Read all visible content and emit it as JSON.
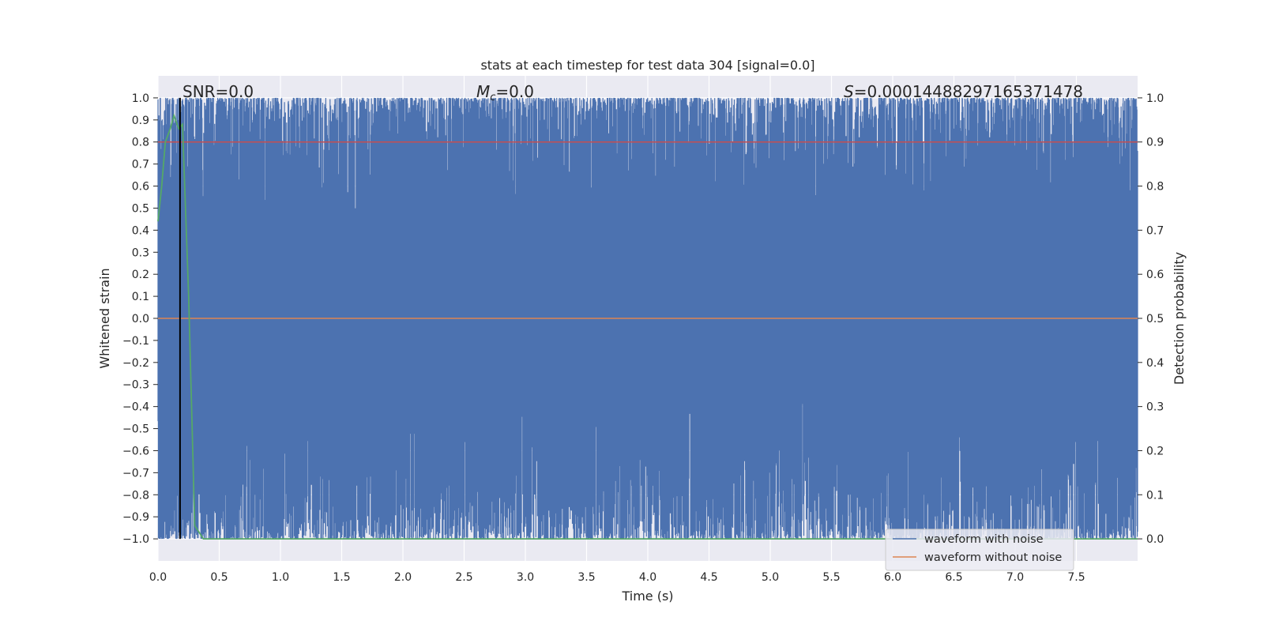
{
  "chart_data": {
    "type": "line",
    "title": "stats at each timestep for test data 304 [signal=0.0]",
    "xlabel": "Time (s)",
    "ylabel": "Whitened strain",
    "ylabel_right": "Detection probability",
    "xlim": [
      0.0,
      8.0
    ],
    "ylim": [
      -1.1,
      1.1
    ],
    "ylim_right": [
      -0.05,
      1.05
    ],
    "xticks": [
      "0.0",
      "0.5",
      "1.0",
      "1.5",
      "2.0",
      "2.5",
      "3.0",
      "3.5",
      "4.0",
      "4.5",
      "5.0",
      "5.5",
      "6.0",
      "6.5",
      "7.0",
      "7.5"
    ],
    "yticks": [
      "1.0",
      "0.9",
      "0.8",
      "0.7",
      "0.6",
      "0.5",
      "0.4",
      "0.3",
      "0.2",
      "0.1",
      "0.0",
      "−0.1",
      "−0.2",
      "−0.3",
      "−0.4",
      "−0.5",
      "−0.6",
      "−0.7",
      "−0.8",
      "−0.9",
      "−1.0"
    ],
    "yticks_right": [
      "1.0",
      "0.9",
      "0.8",
      "0.7",
      "0.6",
      "0.5",
      "0.4",
      "0.3",
      "0.2",
      "0.1",
      "0.0"
    ],
    "grid": true,
    "annotations": {
      "snr": "SNR=0.0",
      "mc_symbol": "M",
      "mc_sub": "c",
      "mc_value": "=0.0",
      "s_symbol": "S",
      "s_value": "=0.00014488297165371478"
    },
    "legend": {
      "placement": "lower-right",
      "entries": [
        "waveform with noise",
        "waveform without noise"
      ]
    },
    "series": [
      {
        "name": "waveform with noise",
        "color": "#4c72b0",
        "description_range": [
          -1.0,
          1.0
        ]
      },
      {
        "name": "waveform without noise",
        "color": "#dd8452",
        "x": [
          0.0,
          8.0
        ],
        "y": [
          0.0,
          0.0
        ]
      },
      {
        "color": "#c44e52",
        "axis": "right",
        "x": [
          0.0,
          8.0
        ],
        "y": [
          0.9,
          0.9
        ]
      },
      {
        "color": "#55a868",
        "axis": "right",
        "x": [
          0.0,
          0.03,
          0.06,
          0.1,
          0.13,
          0.17,
          0.2,
          0.25,
          0.3,
          0.37,
          8.0
        ],
        "y": [
          0.72,
          0.8,
          0.9,
          0.93,
          0.96,
          0.93,
          0.94,
          0.55,
          0.03,
          0.0,
          0.0
        ]
      },
      {
        "color": "#000000",
        "x": [
          0.18,
          0.18
        ],
        "y": [
          -1.0,
          1.0
        ]
      }
    ]
  }
}
